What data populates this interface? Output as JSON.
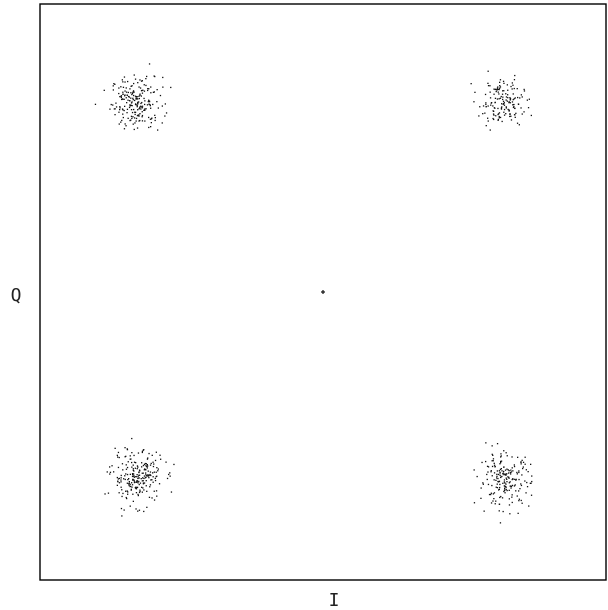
{
  "chart_data": {
    "type": "scatter",
    "title": "",
    "xlabel": "I",
    "ylabel": "Q",
    "xlim": [
      -1.0,
      1.0
    ],
    "ylim": [
      -1.0,
      1.0
    ],
    "grid": false,
    "legend": "none",
    "series": [
      {
        "clusters": [
          {
            "x": -0.66,
            "y": 0.66,
            "spread": 0.045,
            "count": 220
          },
          {
            "x": 0.63,
            "y": 0.66,
            "spread": 0.04,
            "count": 160
          },
          {
            "x": -0.66,
            "y": -0.64,
            "spread": 0.045,
            "count": 240
          },
          {
            "x": 0.64,
            "y": -0.65,
            "spread": 0.045,
            "count": 200
          }
        ],
        "center_marker": {
          "x": 0.0,
          "y": 0.0
        }
      }
    ],
    "colors": {
      "points": "#111111",
      "frame": "#000000",
      "background": "#ffffff"
    }
  }
}
